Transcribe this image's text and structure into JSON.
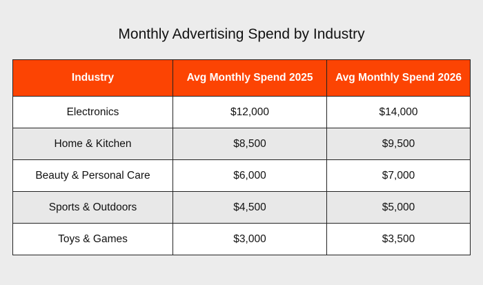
{
  "header": {
    "title": "Monthly Advertising Spend by Industry"
  },
  "table": {
    "columns": [
      "Industry",
      "Avg Monthly Spend 2025",
      "Avg Monthly Spend 2026"
    ],
    "rows": [
      [
        "Electronics",
        "$12,000",
        "$14,000"
      ],
      [
        "Home & Kitchen",
        "$8,500",
        "$9,500"
      ],
      [
        "Beauty & Personal Care",
        "$6,000",
        "$7,000"
      ],
      [
        "Sports & Outdoors",
        "$4,500",
        "$5,000"
      ],
      [
        "Toys & Games",
        "$3,000",
        "$3,500"
      ]
    ]
  }
}
